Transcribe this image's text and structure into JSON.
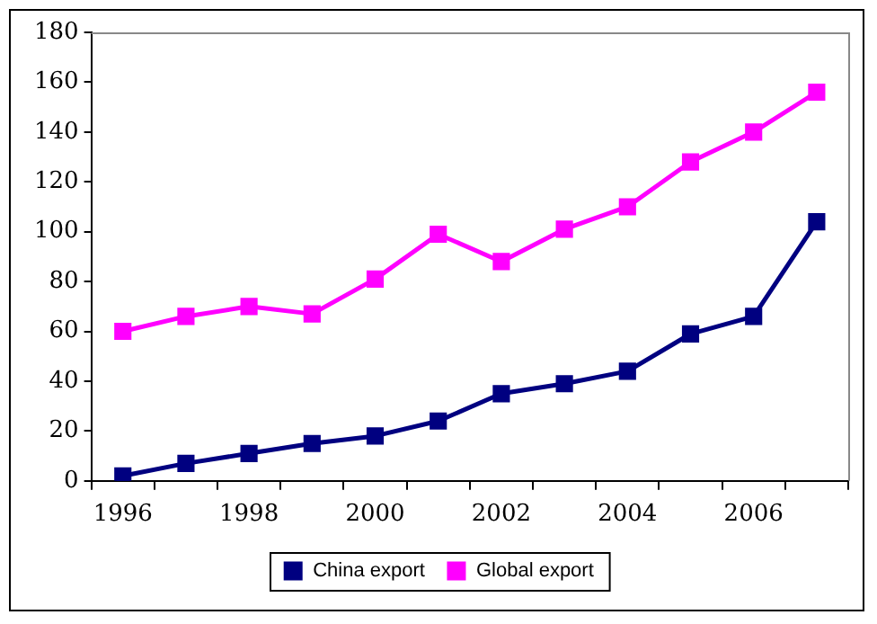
{
  "chart_data": {
    "type": "line",
    "categories": [
      "1996",
      null,
      "1998",
      null,
      "2000",
      null,
      "2002",
      null,
      "2004",
      null,
      "2006",
      null
    ],
    "series": [
      {
        "name": "China export",
        "color": "#000080",
        "values": [
          2,
          7,
          11,
          15,
          18,
          24,
          35,
          39,
          44,
          59,
          66,
          104
        ]
      },
      {
        "name": "Global export",
        "color": "#ff00ff",
        "values": [
          60,
          66,
          70,
          67,
          81,
          99,
          88,
          101,
          110,
          128,
          140,
          156
        ]
      }
    ],
    "ylim": [
      0,
      180
    ],
    "yticks": [
      0,
      20,
      40,
      60,
      80,
      100,
      120,
      140,
      160,
      180
    ],
    "grid": false,
    "legend": "bottom",
    "marker": "square",
    "line_style": "solid"
  }
}
